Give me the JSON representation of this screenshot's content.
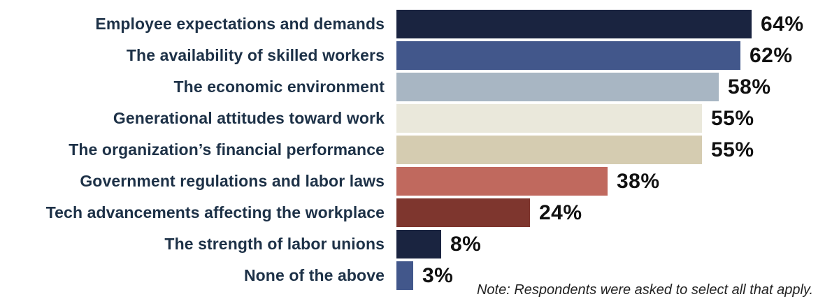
{
  "chart_data": {
    "type": "bar",
    "orientation": "horizontal",
    "title": "",
    "xlabel": "",
    "ylabel": "",
    "xlim": [
      0,
      70
    ],
    "grid": false,
    "categories": [
      "Employee expectations and demands",
      "The availability of skilled workers",
      "The economic environment",
      "Generational attitudes toward work",
      "The organization’s financial performance",
      "Government regulations and labor laws",
      "Tech advancements affecting the workplace",
      "The strength of labor unions",
      "None of the above"
    ],
    "values": [
      64,
      62,
      58,
      55,
      55,
      38,
      24,
      8,
      3
    ],
    "value_labels": [
      "64%",
      "62%",
      "58%",
      "55%",
      "55%",
      "38%",
      "24%",
      "8%",
      "3%"
    ],
    "bar_colors": [
      "#1a2440",
      "#42578b",
      "#a8b6c3",
      "#eae8db",
      "#d5ccb1",
      "#c0695e",
      "#7e362e",
      "#1a2440",
      "#42578b"
    ],
    "note": "Note: Respondents were asked to select all that apply."
  },
  "colors": {
    "background": "#ffffff",
    "category_label_text": "#1d3147",
    "value_label_text": "#111111",
    "note_text": "#222222"
  }
}
